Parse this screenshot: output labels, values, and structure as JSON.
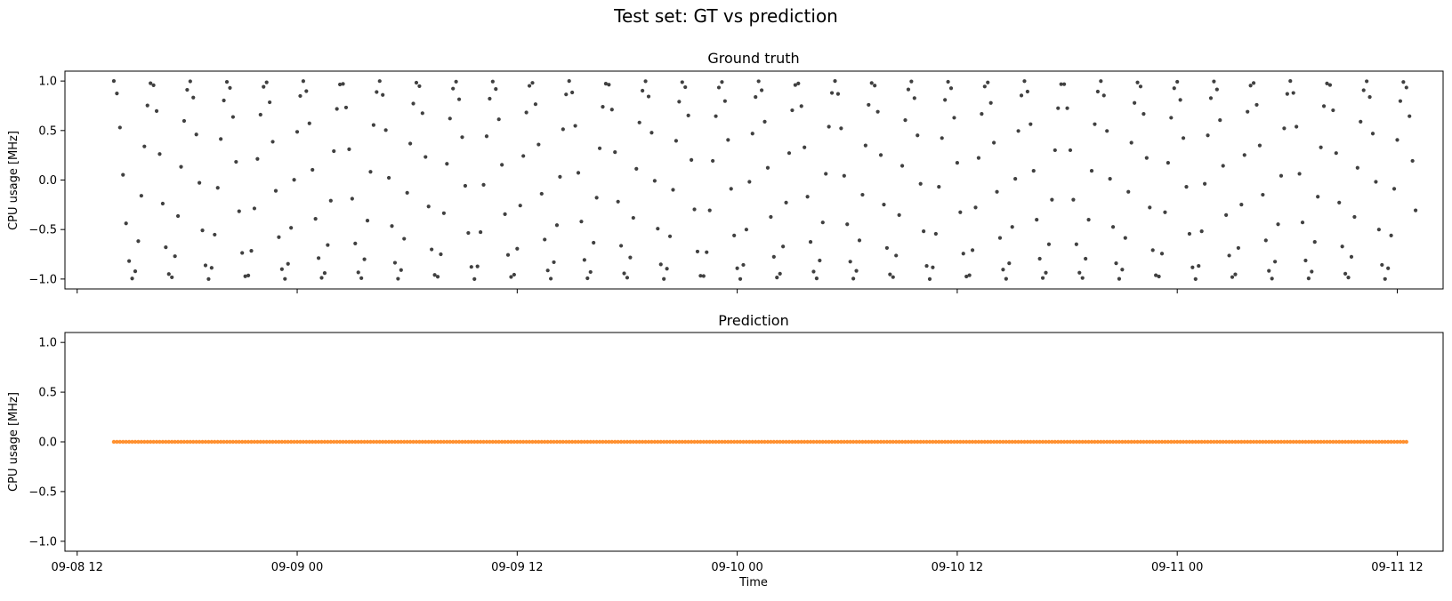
{
  "figure": {
    "suptitle": "Test set: GT vs prediction"
  },
  "chart_data": [
    {
      "type": "scatter",
      "title": "Ground truth",
      "xlabel": "",
      "ylabel": "CPU usage [MHz]",
      "ylim": [
        -1.1,
        1.1
      ],
      "yticks": [
        1.0,
        0.5,
        0.0,
        -0.5,
        -1.0
      ],
      "ytick_labels": [
        "1.0",
        "0.5",
        "0.0",
        "−0.5",
        "−1.0"
      ],
      "x_is_time": true,
      "xlim": [
        "2024-09-08 11:20",
        "2024-09-11 14:30"
      ],
      "grid": false,
      "series": [
        {
          "color": "#404040",
          "marker_size": "small",
          "x_start": "2024-09-08 14:00",
          "x_end": "2024-09-11 13:00",
          "sampling_minutes": 10,
          "period_minutes": 124.2,
          "formula": "cos(2*pi*(t - t0)/period)",
          "y_min": -1.0,
          "y_max": 1.0
        }
      ]
    },
    {
      "type": "scatter",
      "title": "Prediction",
      "xlabel": "Time",
      "ylabel": "CPU usage [MHz]",
      "ylim": [
        -1.1,
        1.1
      ],
      "yticks": [
        1.0,
        0.5,
        0.0,
        -0.5,
        -1.0
      ],
      "ytick_labels": [
        "1.0",
        "0.5",
        "0.0",
        "−0.5",
        "−1.0"
      ],
      "x_is_time": true,
      "xlim": [
        "2024-09-08 11:20",
        "2024-09-11 14:30"
      ],
      "xticks": [
        "2024-09-08 12:00",
        "2024-09-09 00:00",
        "2024-09-09 12:00",
        "2024-09-10 00:00",
        "2024-09-10 12:00",
        "2024-09-11 00:00",
        "2024-09-11 12:00"
      ],
      "xtick_labels": [
        "09-08 12",
        "09-09 00",
        "09-09 12",
        "09-10 00",
        "09-10 12",
        "09-11 00",
        "09-11 12"
      ],
      "grid": false,
      "series": [
        {
          "color": "#ff7f0e",
          "x_start": "2024-09-08 14:00",
          "x_end": "2024-09-11 12:30",
          "sampling_minutes": 10,
          "constant_value": 0.0
        }
      ]
    }
  ]
}
